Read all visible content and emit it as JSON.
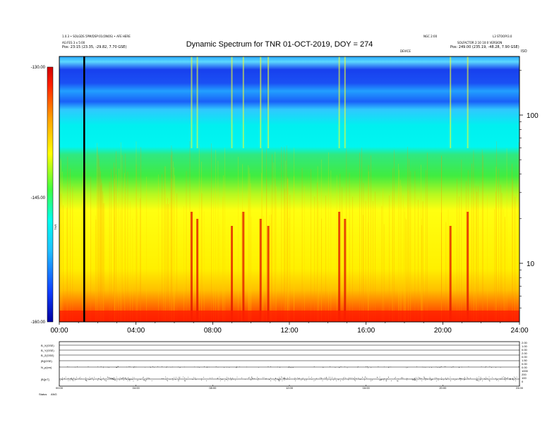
{
  "header": {
    "left_lines": [
      "1.0.3 • SOLGDS 5PM/DSP:01(ONOS) • AFE HERE",
      "AG:FES 3 x 5:00",
      "Pos: 23:15 (23.35, -29.82, 7.70 GSE)"
    ],
    "right_top_left": "NGC 2:00",
    "right_top_right": "L3 STOOP/3.0",
    "right_lines": [
      "SOLFACTOR 2:10 10:0 VERSION",
      "Pos: 249.00 (235.19, -48.28, 7.90 GSE)"
    ],
    "mid_small": "DEVICE",
    "corner": "ISO"
  },
  "chart_data": {
    "type": "heatmap",
    "title": "Dynamic Spectrum for TNR 01-OCT-2019, DOY = 274",
    "x_range_hours": [
      0,
      24
    ],
    "x_ticks": [
      "00:00",
      "04:00",
      "08:00",
      "12:00",
      "16:00",
      "20:00",
      "24:00"
    ],
    "y_scale": "log",
    "y_ticks": [
      "100",
      "10"
    ],
    "y_tick_values": [
      100,
      10
    ],
    "y_corner_label": "ISO",
    "colorbar": {
      "ticks": [
        "-130.00",
        "-145.00",
        "-160.00"
      ],
      "tick_values": [
        -130,
        -145,
        -160
      ],
      "label": "TNR",
      "colors": [
        "#0000a0",
        "#1040ff",
        "#20c0ff",
        "#00ffee",
        "#40ff40",
        "#ffff00",
        "#ffa000",
        "#ff2000",
        "#d00000"
      ]
    },
    "marker_line_hour": 1.3,
    "bursts_hours": [
      6.9,
      7.2,
      9.0,
      9.6,
      10.5,
      10.9,
      14.6,
      14.9,
      20.4,
      21.3
    ],
    "bands_colors": [
      "#1a48f0",
      "#2ec8ff",
      "#00f8f0",
      "#35e85a",
      "#fdfd1a",
      "#ffb000",
      "#ff3a00"
    ]
  },
  "bottom_panels": {
    "labels": [
      "B_X(GSE)",
      "B_Y(GSE)",
      "B_Z(GSE)",
      "|B|(GSE)",
      "N_p(cm)",
      "|B|[nT]"
    ],
    "right_ticks": [
      "2.00",
      "1.00",
      "0.00",
      "2.00",
      "0.00",
      "1.50",
      "0.00",
      "0.00",
      "1000",
      "200",
      "100",
      "0"
    ],
    "x_ticks": [
      "00:00",
      "04:00",
      "08:00",
      "12:00",
      "16:00",
      "20:00",
      "24:00"
    ],
    "footer_left": "Status",
    "footer_left2": "ANG"
  }
}
